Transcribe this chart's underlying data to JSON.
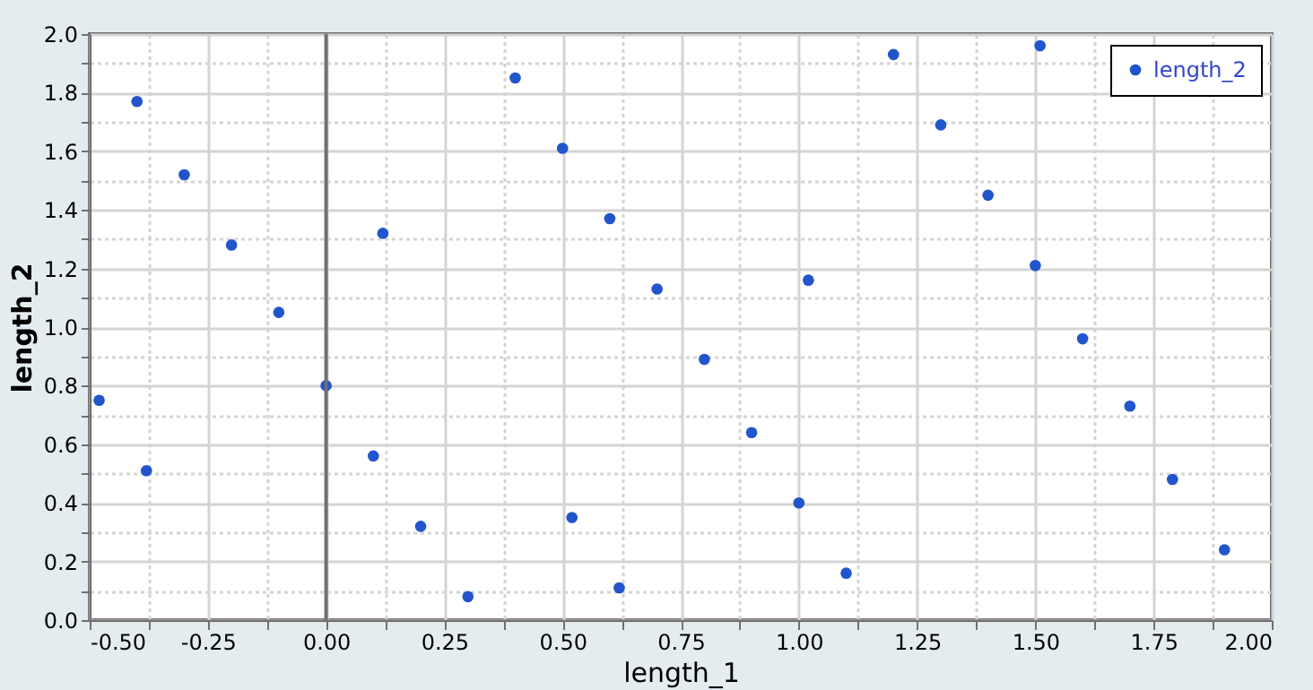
{
  "chart_data": {
    "type": "scatter",
    "xlabel": "length_1",
    "ylabel": "length_2",
    "x": [
      -0.48,
      -0.4,
      -0.38,
      -0.3,
      -0.2,
      -0.1,
      0.0,
      0.1,
      0.12,
      0.2,
      0.3,
      0.4,
      0.5,
      0.52,
      0.6,
      0.62,
      0.7,
      0.8,
      0.9,
      1.0,
      1.02,
      1.1,
      1.2,
      1.3,
      1.4,
      1.51,
      1.5,
      1.6,
      1.7,
      1.79,
      1.9
    ],
    "series": [
      {
        "name": "length_2",
        "color": "#2255cc",
        "values": [
          0.75,
          1.77,
          0.51,
          1.52,
          1.28,
          1.05,
          0.8,
          0.56,
          1.32,
          0.32,
          0.08,
          1.85,
          1.61,
          0.35,
          1.37,
          0.11,
          1.13,
          0.89,
          0.64,
          0.4,
          1.16,
          0.16,
          1.93,
          1.69,
          1.45,
          1.96,
          1.21,
          0.96,
          0.73,
          0.48,
          0.24
        ]
      }
    ],
    "xlim": [
      -0.5,
      2.0
    ],
    "xticks": [
      {
        "value": -0.5,
        "label": "-0.50"
      },
      {
        "value": -0.375,
        "label": null
      },
      {
        "value": -0.25,
        "label": "-0.25"
      },
      {
        "value": -0.125,
        "label": null
      },
      {
        "value": 0,
        "label": "0.00"
      },
      {
        "value": 0.125,
        "label": null
      },
      {
        "value": 0.25,
        "label": "0.25"
      },
      {
        "value": 0.375,
        "label": null
      },
      {
        "value": 0.5,
        "label": "0.50"
      },
      {
        "value": 0.625,
        "label": null
      },
      {
        "value": 0.75,
        "label": "0.75"
      },
      {
        "value": 0.875,
        "label": null
      },
      {
        "value": 1,
        "label": "1.00"
      },
      {
        "value": 1.125,
        "label": null
      },
      {
        "value": 1.25,
        "label": "1.25"
      },
      {
        "value": 1.375,
        "label": null
      },
      {
        "value": 1.5,
        "label": "1.50"
      },
      {
        "value": 1.625,
        "label": null
      },
      {
        "value": 1.75,
        "label": "1.75"
      },
      {
        "value": 1.875,
        "label": null
      },
      {
        "value": 2,
        "label": "2.00"
      }
    ],
    "ylim": [
      0.0,
      2.0
    ],
    "yticks": [
      {
        "value": 0,
        "label": "0.0"
      },
      {
        "value": 0.1,
        "label": null
      },
      {
        "value": 0.2,
        "label": "0.2"
      },
      {
        "value": 0.3,
        "label": null
      },
      {
        "value": 0.4,
        "label": "0.4"
      },
      {
        "value": 0.5,
        "label": null
      },
      {
        "value": 0.6,
        "label": "0.6"
      },
      {
        "value": 0.7,
        "label": null
      },
      {
        "value": 0.8,
        "label": "0.8"
      },
      {
        "value": 0.9,
        "label": null
      },
      {
        "value": 1,
        "label": "1.0"
      },
      {
        "value": 1.1,
        "label": null
      },
      {
        "value": 1.2,
        "label": "1.2"
      },
      {
        "value": 1.3,
        "label": null
      },
      {
        "value": 1.4,
        "label": "1.4"
      },
      {
        "value": 1.5,
        "label": null
      },
      {
        "value": 1.6,
        "label": "1.6"
      },
      {
        "value": 1.7,
        "label": null
      },
      {
        "value": 1.8,
        "label": "1.8"
      },
      {
        "value": 1.9,
        "label": null
      },
      {
        "value": 2,
        "label": "2.0"
      }
    ],
    "ref_lines": [
      {
        "axis": "x",
        "value": 0.0,
        "color": "#707070"
      }
    ],
    "grid": true,
    "legend": "top right",
    "marker": "circle"
  }
}
